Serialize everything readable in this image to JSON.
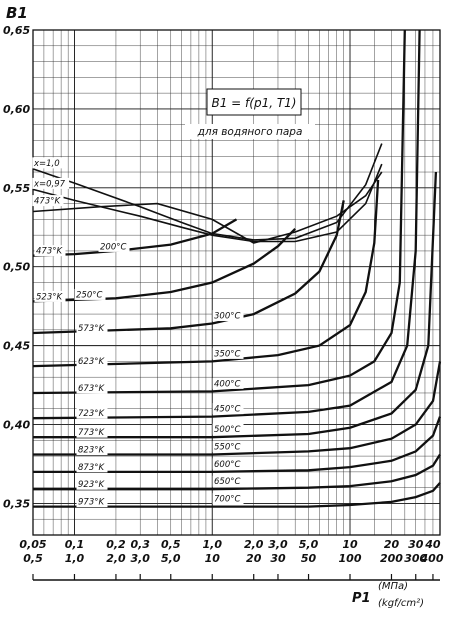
{
  "chart_data": {
    "type": "line",
    "title": "B1 = f(p1, T1)",
    "subtitle": "для водяного пара",
    "ylabel": "B1",
    "xlabel": "P1",
    "xlabel_units_1": "(МПа)",
    "xlabel_units_2": "(kgf/cm²)",
    "ylim": [
      0.33,
      0.65
    ],
    "xlim_mpa": [
      0.05,
      45
    ],
    "xscale": "log",
    "grid": true,
    "y_ticks": [
      "0,35",
      "0,40",
      "0,45",
      "0,50",
      "0,55",
      "0,60",
      "0,65"
    ],
    "x_ticks_mpa": [
      "0,05",
      "0,1",
      "0,2",
      "0,3",
      "0,5",
      "1,0",
      "2,0",
      "3,0",
      "5,0",
      "10"
    ],
    "x_ticks_kgf": [
      "0,5",
      "1,0",
      "2,0",
      "3,0",
      "5,0",
      "10",
      "20",
      "30",
      "50",
      "100",
      "200",
      "300",
      "400"
    ],
    "x_ticks_mpa_right": [
      "20",
      "30",
      "40"
    ],
    "series": [
      {
        "name": "473°K / 200°C",
        "lbl_k": "473°K",
        "lbl_c": "200°C",
        "x": [
          0.05,
          0.1,
          0.2,
          0.5,
          1.0,
          1.5
        ],
        "y": [
          0.507,
          0.508,
          0.51,
          0.514,
          0.521,
          0.53
        ]
      },
      {
        "name": "523°K / 250°C",
        "lbl_k": "523°K",
        "lbl_c": "250°C",
        "x": [
          0.05,
          0.2,
          0.5,
          1.0,
          2.0,
          3.0,
          4.0
        ],
        "y": [
          0.478,
          0.48,
          0.484,
          0.49,
          0.502,
          0.513,
          0.524
        ]
      },
      {
        "name": "573°K / 300°C",
        "lbl_k": "573°K",
        "lbl_c": "300°C",
        "x": [
          0.05,
          0.5,
          1.0,
          2.0,
          4.0,
          6.0,
          8.0,
          9.0
        ],
        "y": [
          0.458,
          0.461,
          0.464,
          0.47,
          0.483,
          0.497,
          0.52,
          0.542
        ]
      },
      {
        "name": "623°K / 350°C",
        "lbl_k": "623°K",
        "lbl_c": "350°C",
        "x": [
          0.05,
          1.0,
          3.0,
          6.0,
          10,
          13,
          15,
          16
        ],
        "y": [
          0.437,
          0.44,
          0.444,
          0.45,
          0.463,
          0.484,
          0.515,
          0.555
        ]
      },
      {
        "name": "673°K / 400°C",
        "lbl_k": "673°K",
        "lbl_c": "400°C",
        "x": [
          0.05,
          1.0,
          5.0,
          10,
          15,
          20,
          23,
          25
        ],
        "y": [
          0.42,
          0.421,
          0.425,
          0.431,
          0.44,
          0.458,
          0.49,
          0.65
        ]
      },
      {
        "name": "723°K / 450°C",
        "lbl_k": "723°K",
        "lbl_c": "450°C",
        "x": [
          0.05,
          1.0,
          5.0,
          10,
          20,
          26,
          30,
          32
        ],
        "y": [
          0.404,
          0.405,
          0.408,
          0.412,
          0.427,
          0.45,
          0.51,
          0.65
        ]
      },
      {
        "name": "773°K / 500°C",
        "lbl_k": "773°K",
        "lbl_c": "500°C",
        "x": [
          0.05,
          1.0,
          5.0,
          10,
          20,
          30,
          37,
          42
        ],
        "y": [
          0.392,
          0.392,
          0.394,
          0.398,
          0.407,
          0.422,
          0.45,
          0.56
        ]
      },
      {
        "name": "823°K / 550°C",
        "lbl_k": "823°K",
        "lbl_c": "550°C",
        "x": [
          0.05,
          1.0,
          5.0,
          10,
          20,
          30,
          40,
          45
        ],
        "y": [
          0.381,
          0.381,
          0.383,
          0.385,
          0.391,
          0.4,
          0.415,
          0.44
        ]
      },
      {
        "name": "873°K / 600°C",
        "lbl_k": "873°K",
        "lbl_c": "600°C",
        "x": [
          0.05,
          1.0,
          5.0,
          10,
          20,
          30,
          40,
          45
        ],
        "y": [
          0.37,
          0.37,
          0.371,
          0.373,
          0.377,
          0.383,
          0.393,
          0.405
        ]
      },
      {
        "name": "923°K / 650°C",
        "lbl_k": "923°K",
        "lbl_c": "650°C",
        "x": [
          0.05,
          1.0,
          5.0,
          10,
          20,
          30,
          40,
          45
        ],
        "y": [
          0.359,
          0.359,
          0.36,
          0.361,
          0.364,
          0.368,
          0.374,
          0.381
        ]
      },
      {
        "name": "973°K / 700°C",
        "lbl_k": "973°K",
        "lbl_c": "700°C",
        "x": [
          0.05,
          1.0,
          5.0,
          10,
          20,
          30,
          40,
          45
        ],
        "y": [
          0.348,
          0.348,
          0.348,
          0.349,
          0.351,
          0.354,
          0.358,
          0.363
        ]
      }
    ],
    "quality_lines": [
      {
        "name": "x=1,0",
        "x": [
          0.05,
          0.1,
          0.3,
          0.6,
          1.0,
          2.0,
          4.0,
          8.0,
          13,
          17
        ],
        "y": [
          0.562,
          0.553,
          0.538,
          0.528,
          0.521,
          0.517,
          0.518,
          0.528,
          0.552,
          0.578
        ]
      },
      {
        "name": "x=0,97",
        "x": [
          0.05,
          0.1,
          0.3,
          0.6,
          1.0,
          2.0,
          4.0,
          8.0,
          13,
          17
        ],
        "y": [
          0.549,
          0.542,
          0.532,
          0.525,
          0.52,
          0.516,
          0.516,
          0.522,
          0.54,
          0.565
        ]
      },
      {
        "name": "473°K",
        "x": [
          0.05,
          0.15,
          0.4,
          1.0,
          2.0,
          4.0,
          8.0,
          13,
          17
        ],
        "y": [
          0.535,
          0.538,
          0.54,
          0.53,
          0.515,
          0.522,
          0.532,
          0.545,
          0.56
        ]
      }
    ]
  }
}
